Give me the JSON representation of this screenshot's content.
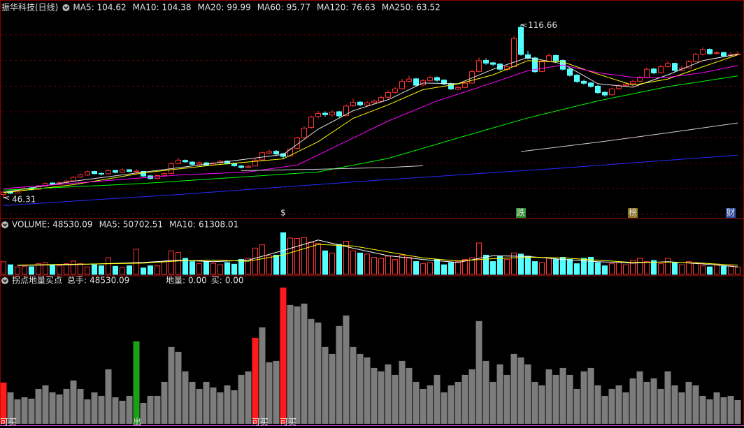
{
  "chart_data": [
    {
      "type": "candlestick",
      "title": "振华科技(日线)",
      "ylim": [
        38,
        121
      ],
      "grid": true,
      "up_color": "#ff3232",
      "down_color": "#54ffff",
      "open": [
        47.5,
        48.8,
        48.1,
        49.3,
        50.2,
        49.6,
        51.0,
        52.2,
        51.6,
        52.4,
        53.1,
        54.6,
        55.4,
        56.9,
        56.1,
        55.9,
        57.3,
        56.6,
        57.6,
        56.8,
        56.9,
        55.1,
        54.1,
        55.3,
        56.1,
        60.1,
        61.4,
        60.7,
        59.9,
        60.4,
        59.6,
        60.4,
        61.1,
        60.1,
        59.1,
        58.6,
        59.1,
        61.6,
        64.4,
        65.1,
        64.1,
        63.2,
        66.3,
        70.6,
        74.8,
        79.2,
        80.6,
        79.9,
        81.2,
        79.6,
        83.6,
        85.1,
        83.9,
        84.9,
        85.4,
        87.1,
        89.1,
        90.6,
        93.6,
        94.6,
        92.1,
        93.9,
        95.1,
        94.1,
        92.6,
        90.4,
        91.1,
        92.9,
        97.6,
        102.1,
        101.1,
        100.6,
        98.4,
        99.6,
        115.5,
        104.4,
        103.1,
        97.6,
        101.6,
        104.1,
        102.1,
        98.6,
        96.1,
        93.6,
        92.9,
        91.6,
        89.1,
        88.1,
        90.6,
        91.9,
        92.6,
        93.6,
        95.1,
        98.6,
        97.1,
        99.6,
        100.9,
        98.1,
        99.1,
        101.6,
        104.6,
        106.6,
        104.9,
        105.3,
        104.0,
        104.6
      ],
      "high": [
        48.9,
        49.3,
        49.6,
        50.6,
        50.5,
        51.4,
        52.5,
        52.6,
        52.8,
        53.5,
        55.0,
        56.0,
        57.3,
        57.2,
        56.6,
        57.8,
        57.6,
        58.2,
        57.9,
        57.9,
        57.1,
        55.4,
        55.6,
        56.4,
        60.4,
        62.3,
        61.8,
        61.1,
        60.9,
        60.8,
        60.8,
        61.6,
        61.4,
        60.4,
        59.5,
        59.6,
        62.0,
        65.0,
        65.8,
        65.6,
        64.5,
        66.4,
        71.0,
        75.3,
        79.6,
        81.5,
        81.3,
        81.8,
        81.6,
        84.2,
        86.5,
        85.6,
        85.6,
        86.2,
        87.8,
        89.8,
        91.2,
        94.6,
        95.8,
        95.0,
        94.5,
        95.9,
        95.6,
        94.4,
        93.0,
        91.7,
        93.4,
        98.3,
        103.2,
        103.0,
        101.6,
        101.0,
        100.1,
        111.8,
        116.66,
        106.0,
        103.6,
        102.2,
        105.0,
        104.5,
        102.5,
        99.0,
        96.5,
        94.2,
        93.3,
        92.0,
        89.5,
        91.0,
        92.4,
        93.0,
        94.2,
        95.8,
        99.2,
        99.0,
        100.2,
        101.6,
        101.2,
        99.8,
        102.3,
        105.2,
        107.4,
        107.0,
        106.0,
        105.6,
        105.5,
        105.8
      ],
      "low": [
        46.31,
        47.6,
        47.9,
        49.0,
        49.1,
        49.4,
        50.7,
        51.2,
        51.3,
        52.0,
        52.8,
        54.2,
        55.1,
        55.6,
        55.2,
        55.6,
        56.1,
        56.3,
        56.5,
        56.4,
        54.7,
        53.6,
        53.8,
        55.0,
        55.9,
        59.8,
        60.4,
        59.3,
        59.5,
        59.1,
        59.3,
        60.1,
        59.7,
        58.8,
        58.1,
        58.3,
        58.9,
        61.3,
        63.9,
        63.6,
        61.8,
        62.9,
        66.0,
        70.2,
        74.3,
        78.4,
        79.2,
        79.3,
        78.8,
        79.3,
        83.1,
        83.4,
        83.5,
        84.3,
        85.0,
        86.6,
        88.5,
        90.2,
        93.1,
        91.5,
        91.7,
        93.5,
        93.4,
        92.0,
        90.0,
        89.9,
        90.8,
        92.6,
        97.2,
        100.3,
        99.8,
        97.9,
        98.0,
        99.3,
        104.0,
        102.5,
        97.0,
        97.3,
        101.2,
        101.6,
        98.0,
        95.5,
        93.0,
        92.2,
        91.0,
        88.4,
        87.3,
        87.8,
        90.1,
        91.4,
        92.2,
        93.3,
        94.8,
        96.5,
        96.8,
        99.2,
        97.5,
        97.7,
        98.8,
        101.2,
        104.1,
        104.4,
        104.5,
        103.5,
        103.7,
        104.2
      ],
      "close": [
        48.5,
        48.0,
        49.2,
        50.0,
        49.5,
        51.0,
        52.0,
        51.5,
        52.3,
        53.0,
        54.5,
        55.5,
        56.8,
        56.0,
        55.8,
        57.2,
        56.5,
        57.5,
        56.9,
        57.0,
        55.0,
        54.0,
        55.2,
        56.0,
        60.0,
        61.5,
        60.8,
        59.8,
        60.5,
        59.5,
        60.3,
        61.0,
        60.0,
        59.2,
        58.5,
        59.0,
        61.5,
        64.5,
        65.0,
        64.0,
        63.0,
        66.0,
        70.5,
        74.5,
        79.0,
        80.5,
        80.0,
        81.0,
        79.5,
        83.5,
        85.0,
        84.0,
        84.8,
        85.5,
        87.0,
        89.0,
        90.5,
        93.5,
        94.5,
        92.0,
        93.8,
        95.0,
        94.0,
        92.5,
        90.5,
        91.0,
        92.8,
        97.5,
        102.0,
        101.0,
        100.5,
        98.5,
        99.5,
        111.0,
        104.5,
        103.0,
        97.5,
        101.5,
        104.0,
        102.0,
        98.5,
        96.0,
        93.5,
        92.8,
        91.5,
        89.0,
        88.0,
        90.5,
        91.8,
        92.5,
        93.5,
        95.0,
        98.5,
        97.0,
        99.5,
        100.8,
        98.0,
        99.0,
        101.5,
        104.5,
        106.5,
        104.8,
        105.2,
        103.9,
        104.5,
        104.7
      ],
      "series": [
        {
          "name": "MA5:",
          "color": "#e8e8e8",
          "x": [
            0,
            10,
            20,
            30,
            40,
            45,
            50,
            55,
            60,
            65,
            70,
            75,
            80,
            85,
            90,
            95,
            100,
            105
          ],
          "values": [
            48.4,
            52.9,
            56.6,
            60.2,
            63.8,
            74.1,
            81.6,
            86.1,
            92.9,
            92.6,
            98.5,
            103.3,
            100.7,
            92.6,
            91.2,
            96.2,
            102.0,
            104.62
          ]
        },
        {
          "name": "MA10:",
          "color": "#ffff00",
          "x": [
            0,
            10,
            20,
            30,
            40,
            45,
            50,
            55,
            60,
            65,
            70,
            75,
            80,
            85,
            90,
            95,
            100,
            105
          ],
          "values": [
            48.2,
            51.5,
            56.3,
            59.5,
            62.0,
            69.0,
            78.5,
            84.0,
            90.2,
            92.5,
            96.2,
            102.0,
            101.5,
            96.5,
            92.0,
            94.5,
            99.5,
            104.38
          ]
        },
        {
          "name": "MA20:",
          "color": "#ff00ff",
          "x": [
            0,
            15,
            25,
            35,
            42,
            50,
            55,
            62,
            68,
            75,
            80,
            85,
            90,
            95,
            100,
            105
          ],
          "values": [
            49.9,
            53.2,
            55.4,
            56.7,
            59.5,
            70.5,
            77.4,
            85.6,
            91.1,
            97.9,
            100.2,
            97.1,
            95.2,
            95.2,
            97.1,
            99.99
          ]
        },
        {
          "name": "MA60:",
          "color": "#00ff00",
          "x": [
            0,
            20,
            35,
            45,
            55,
            65,
            75,
            85,
            95,
            105
          ],
          "values": [
            49.3,
            52.0,
            54.8,
            56.7,
            62.2,
            70.5,
            78.7,
            85.6,
            91.4,
            95.77
          ]
        },
        {
          "name": "MA120:",
          "color": "#d0d0d0",
          "x": [
            34,
            45,
            55,
            60,
            67,
            74,
            85,
            95,
            105
          ],
          "values": [
            57.2,
            57.8,
            58.5,
            59.2,
            null,
            65.0,
            68.8,
            72.6,
            76.63
          ]
        },
        {
          "name": "MA250:",
          "color": "#2a2aff",
          "x": [
            0,
            25,
            53,
            80,
            105
          ],
          "values": [
            43.0,
            47.5,
            53.2,
            58.3,
            63.52
          ]
        }
      ],
      "events": [
        {
          "x": 40,
          "label": "$",
          "color": "#ff3030"
        },
        {
          "x": 74,
          "label": "跌",
          "color": "#ffffff",
          "background": "#2e8b2e"
        },
        {
          "x": 90,
          "label": "榜",
          "color": "#ffffff",
          "background": "#8a7020"
        },
        {
          "x": 104,
          "label": "财",
          "color": "#ffffff",
          "background": "#3050a0"
        }
      ]
    },
    {
      "type": "bar",
      "title": "VOLUME:",
      "ylim": [
        0,
        350000
      ],
      "values": [
        84370,
        64350,
        50050,
        54340,
        51480,
        71500,
        78650,
        64350,
        60060,
        71500,
        88660,
        71500,
        50050,
        64350,
        57200,
        111540,
        54340,
        47190,
        57200,
        168740,
        42900,
        57200,
        57200,
        85800,
        157300,
        147290,
        107250,
        85800,
        71500,
        85800,
        74360,
        64350,
        78650,
        68640,
        100100,
        107250,
        175890,
        197340,
        125840,
        128700,
        278850,
        243100,
        240240,
        245960,
        214500,
        207350,
        157300,
        143000,
        200200,
        221650,
        157300,
        143000,
        135850,
        114400,
        107250,
        121550,
        100100,
        128700,
        114400,
        85800,
        71500,
        78650,
        100100,
        64350,
        78650,
        85800,
        100100,
        111540,
        210210,
        128700,
        85800,
        121550,
        100100,
        143000,
        135850,
        121550,
        85800,
        78650,
        111540,
        100100,
        114400,
        100100,
        71500,
        107250,
        114400,
        78650,
        57200,
        71500,
        78650,
        64350,
        92950,
        107250,
        85800,
        92950,
        71500,
        107250,
        78650,
        64350,
        85800,
        78650,
        57200,
        50050,
        64350,
        54340,
        57200,
        48530.09
      ],
      "series": [
        {
          "name": "MA5:",
          "color": "#ffffff",
          "x": [
            2,
            10,
            20,
            25,
            30,
            35,
            40,
            45,
            50,
            55,
            60,
            65,
            70,
            75,
            80,
            85,
            90,
            95,
            100,
            105
          ],
          "values": [
            60000,
            65000,
            80000,
            95000,
            85000,
            95000,
            160000,
            230000,
            175000,
            125000,
            100000,
            80000,
            125000,
            120000,
            100000,
            85000,
            75000,
            85000,
            70000,
            50702.51
          ]
        },
        {
          "name": "MA10:",
          "color": "#ffff00",
          "x": [
            2,
            10,
            20,
            25,
            30,
            35,
            40,
            45,
            50,
            55,
            60,
            65,
            70,
            75,
            80,
            85,
            90,
            95,
            100,
            105
          ],
          "values": [
            62000,
            68000,
            75000,
            90000,
            95000,
            88000,
            130000,
            200000,
            190000,
            150000,
            110000,
            90000,
            105000,
            115000,
            110000,
            95000,
            80000,
            82000,
            75000,
            61308.01
          ]
        }
      ]
    },
    {
      "type": "signal-bar",
      "title": "拐点地量买点",
      "total_label": "总手:",
      "ylim": [
        0,
        290000
      ],
      "bar_color": "#7c7c7c",
      "outputs": [
        {
          "name": "地量:",
          "value": 0,
          "label": "0.00",
          "color": "#3050ff"
        },
        {
          "name": "买:",
          "value": 0,
          "label": "0.00",
          "color": "#e0e0e0"
        }
      ],
      "signals": [
        {
          "x": 0,
          "label": "可买",
          "color": "#ff1a1a"
        },
        {
          "x": 19,
          "label": "出",
          "color": "#1aa01a"
        },
        {
          "x": 36,
          "label": "可买",
          "color": "#ff1a1a"
        },
        {
          "x": 40,
          "label": "可买",
          "color": "#ff1a1a"
        }
      ]
    }
  ]
}
